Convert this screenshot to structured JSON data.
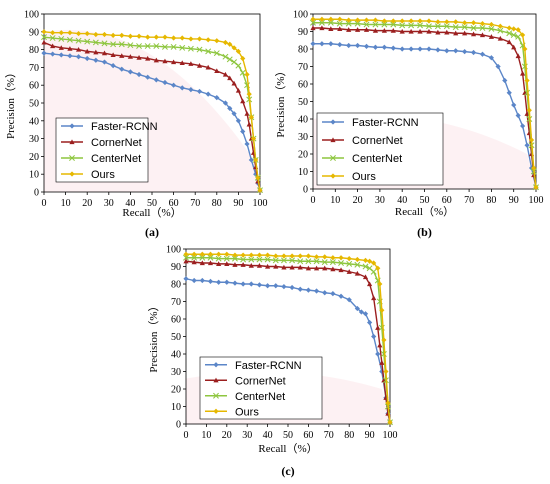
{
  "colors": {
    "Faster-RCNN": "#5b86c8",
    "CornerNet": "#9b1f1f",
    "CenterNet": "#8ec63f",
    "Ours": "#e6b800",
    "fill_red": "#f7c6cf",
    "fill_blue": "#c9dcf2"
  },
  "markers": {
    "Faster-RCNN": "diamond",
    "CornerNet": "triangle",
    "CenterNet": "x",
    "Ours": "diamond"
  },
  "chart_data": [
    {
      "type": "line",
      "panel_label": "(a)",
      "xlabel": "Recall（%）",
      "ylabel": "Precision（%）",
      "xlim": [
        0,
        100
      ],
      "ylim": [
        0,
        100
      ],
      "xticks": [
        0,
        10,
        20,
        30,
        40,
        50,
        60,
        70,
        80,
        90,
        100
      ],
      "yticks": [
        0,
        10,
        20,
        30,
        40,
        50,
        60,
        70,
        80,
        90,
        100
      ],
      "grid": false,
      "legend_position": "bottom-left",
      "series": [
        {
          "name": "Faster-RCNN",
          "x": [
            0,
            4,
            8,
            12,
            16,
            20,
            24,
            28,
            32,
            36,
            40,
            44,
            48,
            52,
            56,
            60,
            64,
            68,
            72,
            76,
            80,
            84,
            86,
            88,
            90,
            92,
            94,
            96,
            98,
            99,
            100
          ],
          "y": [
            78,
            77.5,
            77,
            76.5,
            76,
            75,
            74,
            73,
            71,
            69,
            67.5,
            66,
            64.5,
            63,
            61.5,
            60,
            58.5,
            57.5,
            56.5,
            55,
            53,
            50,
            47,
            44,
            40,
            34,
            27,
            18,
            10,
            5,
            1
          ]
        },
        {
          "name": "CornerNet",
          "x": [
            0,
            4,
            8,
            12,
            16,
            20,
            24,
            28,
            32,
            36,
            40,
            44,
            48,
            52,
            56,
            60,
            64,
            68,
            72,
            76,
            80,
            84,
            86,
            88,
            90,
            92,
            94,
            95,
            96,
            97,
            98,
            99,
            100
          ],
          "y": [
            84,
            82,
            81,
            80.5,
            80,
            79,
            78.5,
            78,
            77,
            76.5,
            76,
            75.5,
            75,
            74,
            73.5,
            73,
            72.5,
            72,
            71,
            70,
            68,
            66,
            64,
            61,
            57,
            51,
            44,
            38,
            30,
            22,
            14,
            6,
            1
          ]
        },
        {
          "name": "CenterNet",
          "x": [
            0,
            4,
            8,
            12,
            16,
            20,
            24,
            28,
            32,
            36,
            40,
            44,
            48,
            52,
            56,
            60,
            64,
            68,
            72,
            76,
            80,
            84,
            86,
            88,
            90,
            92,
            94,
            95,
            96,
            97,
            98,
            99,
            100
          ],
          "y": [
            87,
            86.5,
            86,
            85.5,
            85,
            84.5,
            84,
            83.5,
            83,
            83,
            82.5,
            82,
            82,
            82,
            81.5,
            81.5,
            81,
            80.5,
            80,
            79,
            78,
            76,
            74.5,
            73,
            71,
            67,
            60,
            52,
            42,
            30,
            18,
            8,
            1
          ]
        },
        {
          "name": "Ours",
          "x": [
            0,
            4,
            8,
            12,
            16,
            20,
            24,
            28,
            32,
            36,
            40,
            44,
            48,
            52,
            56,
            60,
            64,
            68,
            72,
            76,
            80,
            84,
            86,
            88,
            90,
            92,
            94,
            95,
            96,
            97,
            98,
            99,
            100
          ],
          "y": [
            90,
            89.5,
            89.5,
            89.5,
            89,
            89,
            88.5,
            88.5,
            88,
            88,
            87.5,
            87.5,
            87,
            87,
            87,
            86.5,
            86.5,
            86,
            86,
            85.5,
            85,
            84,
            83,
            81,
            79,
            75,
            66,
            55,
            42,
            30,
            18,
            8,
            1
          ]
        }
      ]
    },
    {
      "type": "line",
      "panel_label": "(b)",
      "xlabel": "Recall（%）",
      "ylabel": "Precision（%）",
      "xlim": [
        0,
        100
      ],
      "ylim": [
        0,
        100
      ],
      "xticks": [
        0,
        10,
        20,
        30,
        40,
        50,
        60,
        70,
        80,
        90,
        100
      ],
      "yticks": [
        0,
        10,
        20,
        30,
        40,
        50,
        60,
        70,
        80,
        90,
        100
      ],
      "grid": false,
      "legend_position": "bottom-center",
      "series": [
        {
          "name": "Faster-RCNN",
          "x": [
            0,
            4,
            8,
            12,
            16,
            20,
            24,
            28,
            32,
            36,
            40,
            44,
            48,
            52,
            56,
            60,
            64,
            68,
            72,
            76,
            80,
            83,
            86,
            88,
            90,
            92,
            94,
            96,
            98,
            100
          ],
          "y": [
            83,
            83,
            83,
            82.5,
            82,
            82,
            81.5,
            81,
            81,
            80.5,
            80,
            80,
            80,
            80,
            79.5,
            79,
            79,
            78.5,
            78,
            77,
            75,
            70,
            62,
            55,
            48,
            42,
            36,
            25,
            12,
            1
          ]
        },
        {
          "name": "CornerNet",
          "x": [
            0,
            4,
            8,
            12,
            16,
            20,
            24,
            28,
            32,
            36,
            40,
            44,
            48,
            52,
            56,
            60,
            64,
            68,
            72,
            76,
            80,
            84,
            88,
            90,
            92,
            94,
            95,
            96,
            97,
            98,
            99,
            100
          ],
          "y": [
            92,
            92,
            91.5,
            91.5,
            91,
            91,
            91,
            90.5,
            90.5,
            90.5,
            90,
            90,
            90,
            90,
            89.5,
            89.5,
            89,
            89,
            88.5,
            88,
            87,
            86,
            84,
            81,
            76,
            66,
            55,
            43,
            32,
            20,
            8,
            1
          ]
        },
        {
          "name": "CenterNet",
          "x": [
            0,
            4,
            8,
            12,
            16,
            20,
            24,
            28,
            32,
            36,
            40,
            44,
            48,
            52,
            56,
            60,
            64,
            68,
            72,
            76,
            80,
            84,
            88,
            90,
            92,
            94,
            95,
            96,
            97,
            98,
            99,
            100
          ],
          "y": [
            95,
            95,
            95,
            94.5,
            94.5,
            94.5,
            94,
            94,
            94,
            94,
            93.5,
            93.5,
            93.5,
            93,
            93,
            93,
            92.5,
            92.5,
            92,
            92,
            91.5,
            90.5,
            89,
            88,
            87,
            82,
            70,
            55,
            40,
            25,
            10,
            1
          ]
        },
        {
          "name": "Ours",
          "x": [
            0,
            4,
            8,
            12,
            16,
            20,
            24,
            28,
            32,
            36,
            40,
            44,
            48,
            52,
            56,
            60,
            64,
            68,
            72,
            76,
            80,
            84,
            88,
            90,
            92,
            94,
            95,
            96,
            97,
            98,
            99,
            100
          ],
          "y": [
            97,
            97,
            97,
            97,
            96.5,
            96.5,
            96.5,
            96.5,
            96,
            96,
            96,
            96,
            96,
            96,
            95.5,
            95.5,
            95.5,
            95,
            95,
            94.5,
            94,
            93,
            92,
            91.5,
            91,
            88,
            80,
            62,
            45,
            28,
            12,
            1
          ]
        }
      ]
    },
    {
      "type": "line",
      "panel_label": "(c)",
      "xlabel": "Recall（%）",
      "ylabel": "Precision（%）",
      "xlim": [
        0,
        100
      ],
      "ylim": [
        0,
        100
      ],
      "xticks": [
        0,
        10,
        20,
        30,
        40,
        50,
        60,
        70,
        80,
        90,
        100
      ],
      "yticks": [
        0,
        10,
        20,
        30,
        40,
        50,
        60,
        70,
        80,
        90,
        100
      ],
      "grid": false,
      "legend_position": "bottom-left",
      "series": [
        {
          "name": "Faster-RCNN",
          "x": [
            0,
            4,
            8,
            12,
            16,
            20,
            24,
            28,
            32,
            36,
            40,
            44,
            48,
            52,
            56,
            60,
            64,
            68,
            72,
            76,
            80,
            84,
            86,
            88,
            90,
            92,
            94,
            96,
            98,
            99,
            100
          ],
          "y": [
            83,
            82,
            82,
            81.5,
            81,
            81,
            80.5,
            80,
            80,
            79.5,
            79,
            79,
            78.5,
            78,
            77,
            76.5,
            76,
            75,
            74.5,
            73,
            71,
            66,
            64,
            63,
            58,
            50,
            40,
            30,
            15,
            6,
            1
          ]
        },
        {
          "name": "CornerNet",
          "x": [
            0,
            4,
            8,
            12,
            16,
            20,
            24,
            28,
            32,
            36,
            40,
            44,
            48,
            52,
            56,
            60,
            64,
            68,
            72,
            76,
            80,
            84,
            88,
            90,
            92,
            94,
            95,
            96,
            97,
            98,
            99,
            100
          ],
          "y": [
            93,
            92.5,
            92,
            92,
            91.5,
            91.5,
            91,
            91,
            90.5,
            90.5,
            90,
            90,
            89.5,
            89.5,
            89.5,
            89,
            89,
            89,
            88.5,
            88,
            87,
            86,
            84,
            80,
            72,
            55,
            45,
            35,
            25,
            15,
            6,
            1
          ]
        },
        {
          "name": "CenterNet",
          "x": [
            0,
            4,
            8,
            12,
            16,
            20,
            24,
            28,
            32,
            36,
            40,
            44,
            48,
            52,
            56,
            60,
            64,
            68,
            72,
            76,
            80,
            84,
            88,
            90,
            92,
            94,
            95,
            96,
            97,
            98,
            99,
            100
          ],
          "y": [
            95,
            95,
            95,
            95,
            94.5,
            94.5,
            94.5,
            94,
            94,
            94,
            94,
            93.5,
            93.5,
            93.5,
            93,
            93,
            93,
            92.5,
            92.5,
            92,
            91.5,
            91,
            90,
            89,
            87,
            82,
            70,
            55,
            40,
            25,
            10,
            1
          ]
        },
        {
          "name": "Ours",
          "x": [
            0,
            4,
            8,
            12,
            16,
            20,
            24,
            28,
            32,
            36,
            40,
            44,
            48,
            52,
            56,
            60,
            64,
            68,
            72,
            76,
            80,
            84,
            88,
            90,
            92,
            94,
            95,
            96,
            97,
            98,
            99,
            100
          ],
          "y": [
            97,
            97,
            97,
            97,
            97,
            97,
            96.5,
            96.5,
            96.5,
            96.5,
            96.5,
            96,
            96,
            96,
            96,
            96,
            95.5,
            95.5,
            95,
            95,
            94.5,
            94,
            93.5,
            93,
            92,
            89,
            80,
            65,
            48,
            30,
            12,
            1
          ]
        }
      ]
    }
  ]
}
